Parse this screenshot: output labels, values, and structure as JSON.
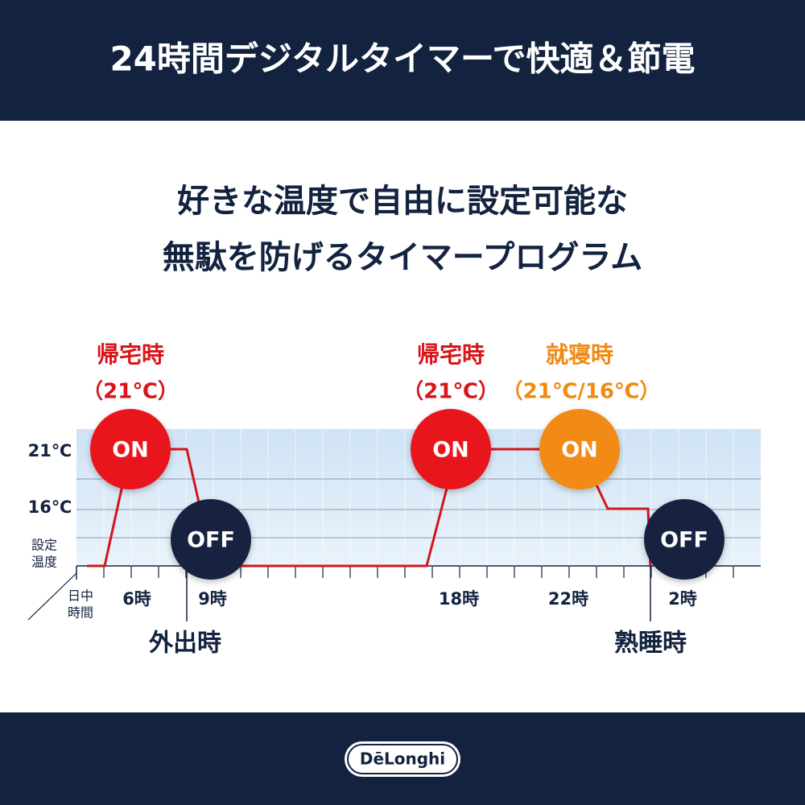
{
  "header": {
    "title": "24時間デジタルタイマーで快適＆節電"
  },
  "headline": {
    "lines": [
      "好きな温度で自由に設定可能な",
      "無駄を防げるタイマープログラム"
    ]
  },
  "diagram": {
    "y_labels": [
      "21℃",
      "16℃"
    ],
    "y_axis_title": [
      "設定",
      "温度"
    ],
    "x_axis_title": [
      "日中",
      "時間"
    ],
    "x_labels": [
      "6時",
      "9時",
      "18時",
      "22時",
      "2時"
    ],
    "events": [
      {
        "label": "帰宅時",
        "detail": "（21℃）",
        "state": "ON"
      },
      {
        "state": "OFF"
      },
      {
        "label": "帰宅時",
        "detail": "（21℃）",
        "state": "ON"
      },
      {
        "label": "就寝時",
        "detail": "（21℃/16℃）",
        "state": "ON"
      },
      {
        "state": "OFF"
      }
    ],
    "periods": [
      "外出時",
      "熟睡時"
    ]
  },
  "footer": {
    "logo": "DēLonghi"
  }
}
